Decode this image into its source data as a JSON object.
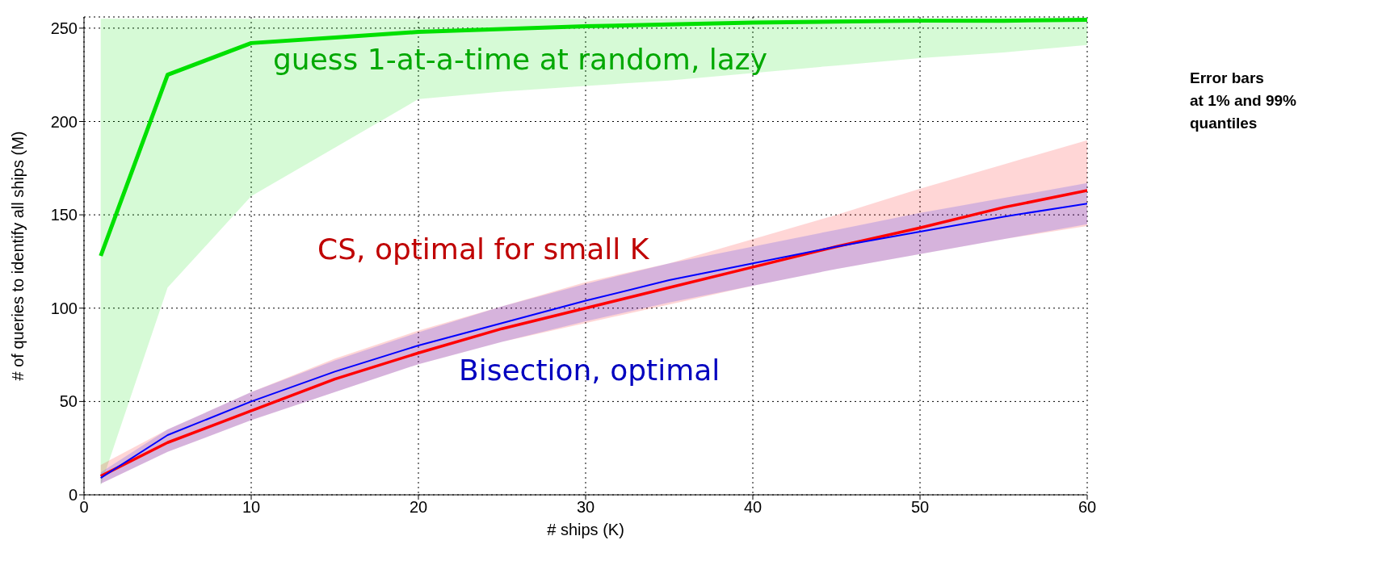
{
  "chart_data": {
    "type": "line",
    "xlabel": "# ships (K)",
    "ylabel": "# of queries to identify all ships (M)",
    "x": [
      1,
      5,
      10,
      15,
      20,
      25,
      30,
      35,
      40,
      45,
      50,
      55,
      60
    ],
    "series": [
      {
        "name": "guess 1-at-a-time at random, lazy",
        "color": "#00e000",
        "values": [
          128,
          225,
          242,
          245,
          248,
          249.5,
          251,
          252,
          253,
          253.5,
          254,
          254,
          254.5
        ],
        "lower": [
          5,
          111,
          160,
          186,
          212,
          216,
          219,
          222,
          226,
          230,
          234,
          237,
          241
        ],
        "upper": [
          255,
          255,
          255,
          255,
          255,
          255,
          255,
          255,
          255,
          255,
          255,
          255,
          255
        ]
      },
      {
        "name": "CS, optimal for small K",
        "color": "#ff0000",
        "values": [
          10,
          28,
          45,
          62,
          76,
          89,
          100,
          111,
          122,
          133,
          143,
          154,
          163
        ],
        "lower": [
          6,
          23,
          40,
          55,
          70,
          82,
          92,
          102,
          112,
          121,
          129,
          137,
          144
        ],
        "upper": [
          16,
          35,
          55,
          73,
          88,
          101,
          114,
          124,
          137,
          150,
          164,
          177,
          190
        ]
      },
      {
        "name": "Bisection, optimal",
        "color": "#0000ff",
        "values": [
          9,
          32,
          50,
          66,
          80,
          92,
          104,
          115,
          124,
          133,
          141,
          149,
          156
        ],
        "lower": [
          6,
          23,
          40,
          55,
          70,
          82,
          93,
          103,
          112,
          121,
          129,
          137,
          145
        ],
        "upper": [
          12,
          35,
          55,
          72,
          87,
          101,
          113,
          124,
          133,
          142,
          151,
          159,
          167
        ]
      }
    ],
    "xlim": [
      0,
      60
    ],
    "xticks": [
      0,
      10,
      20,
      30,
      40,
      50,
      60
    ],
    "ylim": [
      0,
      256
    ],
    "yticks": [
      0,
      50,
      100,
      150,
      200,
      250
    ],
    "grid": true,
    "legend": false,
    "marker": "none",
    "line_style": "solid",
    "annotations": [
      "Error bars\nat 1% and 99%\nquantiles"
    ]
  }
}
